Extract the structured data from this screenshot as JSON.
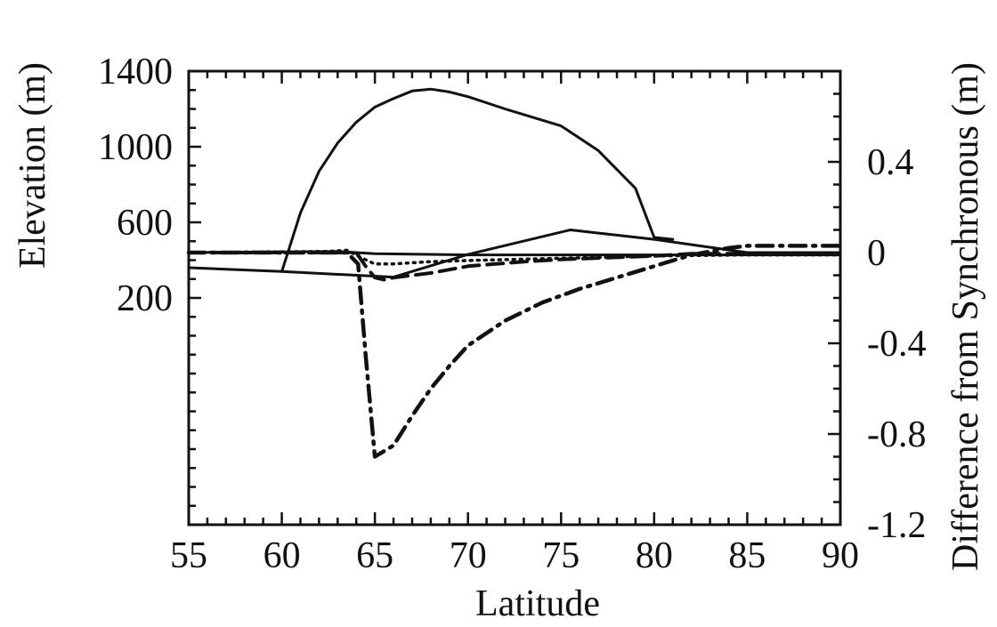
{
  "colors": {
    "ink": "#111111",
    "background": "#ffffff"
  },
  "chart_data": {
    "type": "line",
    "title": "",
    "xlabel": "Latitude",
    "ylabel_left": "Elevation (m)",
    "ylabel_right": "Difference from Synchronous (m)",
    "xlim": [
      55,
      90
    ],
    "ylim_left": [
      -1000,
      1400
    ],
    "ylim_right": [
      -1.2,
      0.8
    ],
    "grid": false,
    "legend": "none",
    "x_ticks": [
      55,
      60,
      65,
      70,
      75,
      80,
      85,
      90
    ],
    "x_tick_labels": [
      "55",
      "60",
      "65",
      "70",
      "75",
      "80",
      "85",
      "90"
    ],
    "x_minor_step": 1,
    "y_left_ticks": [
      200,
      600,
      1000,
      1400
    ],
    "y_left_tick_labels": [
      "200",
      "600",
      "1000",
      "1400"
    ],
    "y_left_minor_step": 100,
    "y_right_ticks": [
      -1.2,
      -0.8,
      -0.4,
      0,
      0.4
    ],
    "y_right_tick_labels": [
      "-1.2",
      "-0.8",
      "-0.4",
      "0",
      "0.4"
    ],
    "y_right_minor_step": 0.1,
    "series": [
      {
        "axis": "left",
        "style": "solid",
        "x": [
          55,
          60,
          66,
          70,
          75.5,
          80,
          85,
          90
        ],
        "y": [
          360,
          340,
          310,
          430,
          560,
          510,
          440,
          440
        ]
      },
      {
        "axis": "left",
        "style": "solid",
        "x": [
          60,
          61,
          62,
          63,
          64,
          65,
          66,
          67,
          68,
          69,
          70,
          72,
          75,
          77,
          79,
          80,
          81
        ],
        "y": [
          340,
          650,
          870,
          1020,
          1130,
          1210,
          1255,
          1295,
          1305,
          1290,
          1265,
          1200,
          1110,
          980,
          780,
          520,
          510
        ]
      },
      {
        "axis": "right",
        "style": "solid",
        "x": [
          55,
          63,
          64,
          65,
          70,
          80,
          90
        ],
        "y": [
          0.0,
          0.005,
          0.0,
          -0.005,
          -0.01,
          -0.01,
          -0.01
        ]
      },
      {
        "axis": "right",
        "style": "dotted",
        "x": [
          55,
          62.5,
          63.5,
          64.2,
          65,
          66,
          68,
          70,
          75,
          80,
          85,
          90
        ],
        "y": [
          0.0,
          0.005,
          0.01,
          -0.02,
          -0.05,
          -0.05,
          -0.04,
          -0.035,
          -0.025,
          -0.015,
          -0.01,
          -0.01
        ]
      },
      {
        "axis": "right",
        "style": "dashed",
        "x": [
          55,
          62.5,
          64,
          64.5,
          65,
          65.5,
          66,
          68,
          70,
          73,
          75,
          80,
          82,
          90
        ],
        "y": [
          0.0,
          0.0,
          0.0,
          -0.06,
          -0.11,
          -0.12,
          -0.11,
          -0.09,
          -0.06,
          -0.04,
          -0.03,
          -0.015,
          -0.005,
          -0.005
        ]
      },
      {
        "axis": "right",
        "style": "dash-dot",
        "x": [
          55,
          62,
          63.5,
          64.1,
          64.5,
          65,
          66,
          67,
          68,
          69,
          70,
          72,
          74,
          76,
          78,
          80,
          82,
          84,
          85,
          90
        ],
        "y": [
          0.0,
          0.0,
          0.0,
          -0.05,
          -0.45,
          -0.9,
          -0.85,
          -0.72,
          -0.6,
          -0.5,
          -0.41,
          -0.3,
          -0.22,
          -0.16,
          -0.11,
          -0.06,
          -0.01,
          0.02,
          0.03,
          0.03
        ]
      }
    ]
  }
}
